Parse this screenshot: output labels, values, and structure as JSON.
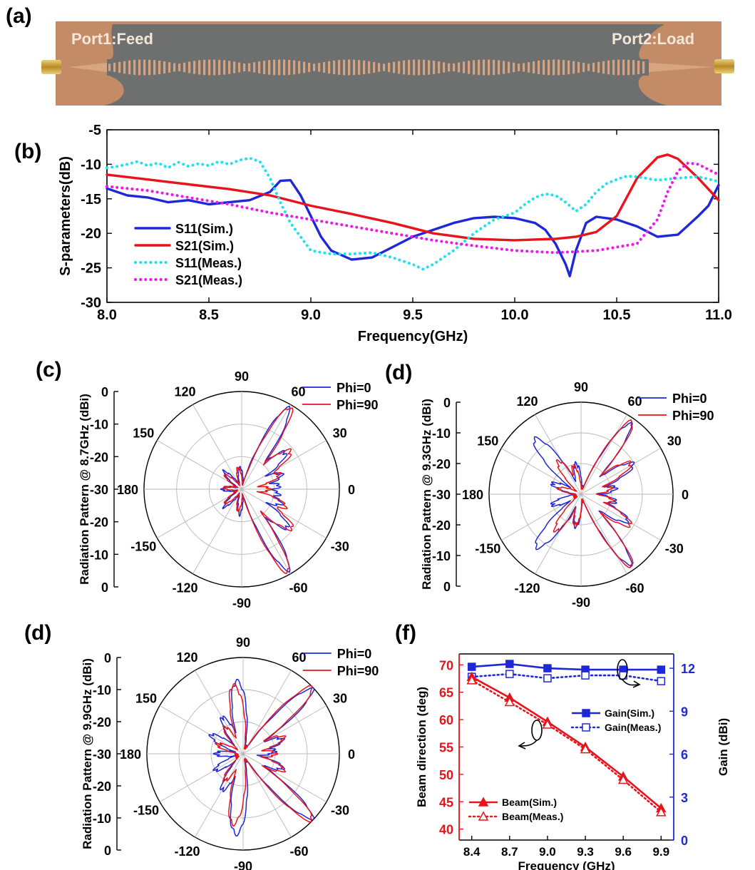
{
  "panels": {
    "a": "(a)",
    "b": "(b)",
    "c": "(c)",
    "d1": "(d)",
    "d2": "(d)",
    "f": "(f)"
  },
  "photo": {
    "port1_label": "Port1:Feed",
    "port2_label": "Port2:Load",
    "colors": {
      "substrate": "#c98f6c",
      "ground": "#6b6e6d",
      "copper": "#d9a27e"
    }
  },
  "chart_data": [
    {
      "id": "b",
      "type": "line",
      "xlabel": "Frequency(GHz)",
      "ylabel": "S-parameters(dB)",
      "xlim": [
        8.0,
        11.0
      ],
      "ylim": [
        -30,
        -5
      ],
      "xticks": [
        "8.0",
        "8.5",
        "9.0",
        "9.5",
        "10.0",
        "10.5",
        "11.0"
      ],
      "yticks": [
        "-5",
        "-10",
        "-15",
        "-20",
        "-25",
        "-30"
      ],
      "legend_position": "lower-left",
      "series": [
        {
          "name": "S11(Sim.)",
          "color": "#1f28d6",
          "dash": "solid",
          "x": [
            8.0,
            8.1,
            8.2,
            8.3,
            8.4,
            8.5,
            8.6,
            8.7,
            8.8,
            8.85,
            8.9,
            8.95,
            9.0,
            9.05,
            9.1,
            9.2,
            9.3,
            9.4,
            9.5,
            9.6,
            9.7,
            9.8,
            9.9,
            10.0,
            10.1,
            10.15,
            10.2,
            10.25,
            10.27,
            10.3,
            10.35,
            10.4,
            10.5,
            10.6,
            10.7,
            10.8,
            10.9,
            10.95,
            11.0
          ],
          "y": [
            -13.5,
            -14.5,
            -14.8,
            -15.5,
            -15.2,
            -15.8,
            -15.5,
            -15.2,
            -14.0,
            -12.4,
            -12.3,
            -14.5,
            -17.5,
            -20.5,
            -22.5,
            -23.8,
            -23.5,
            -22.0,
            -20.5,
            -19.5,
            -18.5,
            -17.8,
            -17.6,
            -17.8,
            -18.5,
            -19.5,
            -21.5,
            -24.5,
            -26.2,
            -22.5,
            -18.5,
            -17.6,
            -18.0,
            -19.0,
            -20.5,
            -20.2,
            -17.5,
            -16.0,
            -13.0
          ]
        },
        {
          "name": "S21(Sim.)",
          "color": "#e8131b",
          "dash": "solid",
          "x": [
            8.0,
            8.2,
            8.4,
            8.6,
            8.8,
            9.0,
            9.2,
            9.4,
            9.6,
            9.8,
            10.0,
            10.2,
            10.3,
            10.4,
            10.5,
            10.6,
            10.7,
            10.75,
            10.8,
            10.9,
            11.0
          ],
          "y": [
            -11.5,
            -12.2,
            -12.9,
            -13.6,
            -14.5,
            -16.0,
            -17.2,
            -18.5,
            -20.0,
            -20.8,
            -21.0,
            -20.8,
            -20.5,
            -19.8,
            -17.5,
            -12.0,
            -9.0,
            -8.6,
            -9.2,
            -12.0,
            -15.2
          ]
        },
        {
          "name": "S11(Meas.)",
          "color": "#1ee2ee",
          "dash": "dotted",
          "x": [
            8.0,
            8.05,
            8.1,
            8.15,
            8.2,
            8.25,
            8.3,
            8.35,
            8.4,
            8.45,
            8.5,
            8.55,
            8.6,
            8.65,
            8.7,
            8.75,
            8.8,
            8.85,
            8.9,
            9.0,
            9.1,
            9.2,
            9.3,
            9.4,
            9.5,
            9.55,
            9.6,
            9.7,
            9.8,
            9.9,
            10.0,
            10.05,
            10.1,
            10.15,
            10.2,
            10.25,
            10.3,
            10.35,
            10.4,
            10.45,
            10.5,
            10.55,
            10.6,
            10.7,
            10.8,
            10.9,
            11.0
          ],
          "y": [
            -10.5,
            -10.3,
            -10.0,
            -9.6,
            -10.2,
            -9.8,
            -10.5,
            -9.7,
            -10.3,
            -9.9,
            -10.2,
            -9.6,
            -10.0,
            -9.4,
            -9.1,
            -9.6,
            -12.0,
            -15.5,
            -18.5,
            -22.5,
            -23.0,
            -23.0,
            -22.8,
            -23.5,
            -24.5,
            -25.2,
            -24.5,
            -22.5,
            -20.0,
            -18.0,
            -17.0,
            -15.8,
            -14.8,
            -14.3,
            -14.5,
            -15.5,
            -16.8,
            -15.8,
            -14.0,
            -12.8,
            -12.2,
            -11.7,
            -11.8,
            -12.3,
            -12.0,
            -11.8,
            -12.5
          ]
        },
        {
          "name": "S21(Meas.)",
          "color": "#ee18ee",
          "dash": "dotted",
          "x": [
            8.0,
            8.2,
            8.4,
            8.6,
            8.8,
            9.0,
            9.2,
            9.4,
            9.6,
            9.8,
            10.0,
            10.2,
            10.4,
            10.6,
            10.7,
            10.75,
            10.8,
            10.85,
            10.9,
            11.0
          ],
          "y": [
            -13.2,
            -13.8,
            -14.8,
            -15.8,
            -17.0,
            -18.0,
            -19.0,
            -20.0,
            -21.0,
            -21.8,
            -22.5,
            -22.8,
            -22.5,
            -21.5,
            -18.0,
            -14.0,
            -11.0,
            -9.8,
            -10.0,
            -11.5
          ]
        }
      ]
    },
    {
      "id": "c",
      "type": "polar",
      "ylabel": "Radiation Pattern @ 8.7GHz (dBi)",
      "rlim": [
        -30,
        0
      ],
      "angle_labels": [
        "0",
        "30",
        "60",
        "90",
        "120",
        "150",
        "180",
        "-150",
        "-120",
        "-90",
        "-60",
        "-30"
      ],
      "r_tick_labels_upper": [
        "0",
        "-10",
        "-20",
        "-30"
      ],
      "r_tick_labels_lower": [
        "-20",
        "-10",
        "0"
      ],
      "legend_position": "top-right",
      "series": [
        {
          "name": "Phi=0",
          "color": "#1f28d6",
          "lobes": [
            [
              60,
              0.92
            ],
            [
              -60,
              0.92
            ],
            [
              40,
              0.55
            ],
            [
              -40,
              0.58
            ],
            [
              20,
              0.4
            ],
            [
              -20,
              0.4
            ],
            [
              5,
              0.35
            ],
            [
              -8,
              0.35
            ],
            [
              95,
              0.2
            ],
            [
              -95,
              0.22
            ],
            [
              135,
              0.22
            ],
            [
              -135,
              0.22
            ],
            [
              180,
              0.18
            ]
          ],
          "floor": 0.05
        },
        {
          "name": "Phi=90",
          "color": "#e8131b",
          "lobes": [
            [
              59,
              0.94
            ],
            [
              -61,
              0.94
            ],
            [
              38,
              0.6
            ],
            [
              -38,
              0.62
            ],
            [
              22,
              0.38
            ],
            [
              -22,
              0.45
            ],
            [
              0,
              0.25
            ],
            [
              100,
              0.2
            ],
            [
              -100,
              0.2
            ],
            [
              140,
              0.2
            ],
            [
              -140,
              0.2
            ],
            [
              175,
              0.16
            ]
          ],
          "floor": 0.04
        }
      ]
    },
    {
      "id": "d1",
      "type": "polar",
      "ylabel": "Radiation Pattern @ 9.3GHz (dBi)",
      "rlim": [
        -30,
        0
      ],
      "angle_labels": [
        "0",
        "30",
        "60",
        "90",
        "120",
        "150",
        "180",
        "-150",
        "-120",
        "-90",
        "-60",
        "-30"
      ],
      "r_tick_labels_upper": [
        "0",
        "-10",
        "-20",
        "-30"
      ],
      "r_tick_labels_lower": [
        "-20",
        "-10",
        "0"
      ],
      "legend_position": "top-right",
      "series": [
        {
          "name": "Phi=0",
          "color": "#1f28d6",
          "lobes": [
            [
              55,
              0.9
            ],
            [
              -55,
              0.9
            ],
            [
              30,
              0.62
            ],
            [
              -30,
              0.55
            ],
            [
              10,
              0.35
            ],
            [
              -12,
              0.35
            ],
            [
              100,
              0.3
            ],
            [
              -100,
              0.32
            ],
            [
              130,
              0.75
            ],
            [
              -130,
              0.72
            ],
            [
              160,
              0.3
            ],
            [
              -160,
              0.3
            ]
          ],
          "floor": 0.06
        },
        {
          "name": "Phi=90",
          "color": "#e8131b",
          "lobes": [
            [
              55,
              0.93
            ],
            [
              -55,
              0.93
            ],
            [
              32,
              0.6
            ],
            [
              -32,
              0.6
            ],
            [
              12,
              0.3
            ],
            [
              -12,
              0.32
            ],
            [
              105,
              0.28
            ],
            [
              -100,
              0.3
            ],
            [
              125,
              0.4
            ],
            [
              -125,
              0.45
            ],
            [
              165,
              0.22
            ]
          ],
          "floor": 0.05
        }
      ]
    },
    {
      "id": "d2",
      "type": "polar",
      "ylabel": "Radiation Pattern @ 9.9GHz (dBi)",
      "rlim": [
        -30,
        0
      ],
      "angle_labels": [
        "0",
        "30",
        "60",
        "90",
        "120",
        "150",
        "180",
        "-150",
        "-120",
        "-90",
        "-60",
        "-30"
      ],
      "r_tick_labels_upper": [
        "0",
        "-10",
        "-20",
        "-30"
      ],
      "r_tick_labels_lower": [
        "-20",
        "-10",
        "0"
      ],
      "legend_position": "top-right",
      "series": [
        {
          "name": "Phi=0",
          "color": "#1f28d6",
          "lobes": [
            [
              43,
              0.95
            ],
            [
              -43,
              0.95
            ],
            [
              20,
              0.4
            ],
            [
              -20,
              0.4
            ],
            [
              5,
              0.3
            ],
            [
              95,
              0.72
            ],
            [
              -95,
              0.8
            ],
            [
              120,
              0.4
            ],
            [
              -120,
              0.4
            ],
            [
              150,
              0.35
            ],
            [
              -150,
              0.3
            ],
            [
              180,
              0.25
            ]
          ],
          "floor": 0.06
        },
        {
          "name": "Phi=90",
          "color": "#e8131b",
          "lobes": [
            [
              44,
              0.96
            ],
            [
              -44,
              0.96
            ],
            [
              22,
              0.42
            ],
            [
              -22,
              0.42
            ],
            [
              0,
              0.3
            ],
            [
              98,
              0.68
            ],
            [
              -98,
              0.7
            ],
            [
              125,
              0.3
            ],
            [
              -125,
              0.3
            ],
            [
              160,
              0.25
            ]
          ],
          "floor": 0.05
        }
      ]
    },
    {
      "id": "f",
      "type": "line",
      "xlabel": "Frequency (GHz)",
      "ylabel": "Beam direction (deg)",
      "y2label": "Gain (dBi)",
      "xlim": [
        8.3,
        10.0
      ],
      "ylim": [
        38,
        72
      ],
      "y2lim": [
        0,
        13
      ],
      "xticks": [
        "8.4",
        "8.7",
        "9.0",
        "9.3",
        "9.6",
        "9.9"
      ],
      "yticks": [
        "40",
        "45",
        "50",
        "55",
        "60",
        "65",
        "70"
      ],
      "y2ticks": [
        "0",
        "3",
        "6",
        "9",
        "12"
      ],
      "legend_position": "right (gain) / lower-left (beam)",
      "series": [
        {
          "name": "Gain(Sim.)",
          "axis": "right",
          "color": "#1f28d6",
          "dash": "solid",
          "marker": "filled-square",
          "x": [
            8.4,
            8.7,
            9.0,
            9.3,
            9.6,
            9.9
          ],
          "y": [
            12.1,
            12.3,
            12.0,
            11.9,
            11.9,
            11.9
          ]
        },
        {
          "name": "Gain(Meas.)",
          "axis": "right",
          "color": "#1f28d6",
          "dash": "dotted",
          "marker": "open-square",
          "x": [
            8.4,
            8.7,
            9.0,
            9.3,
            9.6,
            9.9
          ],
          "y": [
            11.4,
            11.6,
            11.3,
            11.5,
            11.5,
            11.1
          ]
        },
        {
          "name": "Beam(Sim.)",
          "axis": "left",
          "color": "#e8131b",
          "dash": "solid",
          "marker": "filled-triangle",
          "x": [
            8.4,
            8.7,
            9.0,
            9.3,
            9.6,
            9.9
          ],
          "y": [
            67.8,
            64.0,
            59.6,
            55.0,
            49.6,
            43.8
          ]
        },
        {
          "name": "Beam(Meas.)",
          "axis": "left",
          "color": "#e8131b",
          "dash": "dotted",
          "marker": "open-triangle",
          "x": [
            8.4,
            8.7,
            9.0,
            9.3,
            9.6,
            9.9
          ],
          "y": [
            67.2,
            63.2,
            59.1,
            54.6,
            49.0,
            43.1
          ]
        }
      ]
    }
  ]
}
